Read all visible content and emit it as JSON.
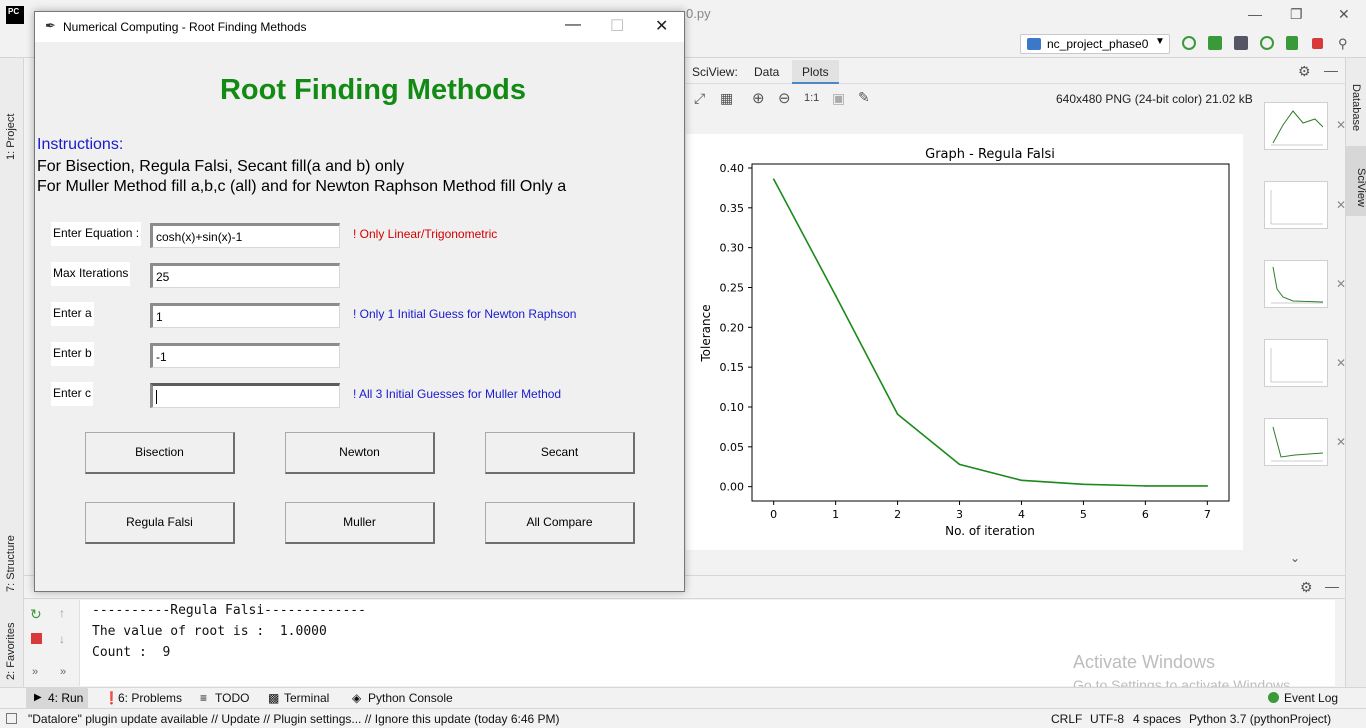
{
  "ide": {
    "logo": "PC",
    "run_config": "nc_project_phase0",
    "editor_tab_fragment": "0.py",
    "left_tools": {
      "project": "1: Project",
      "structure": "7: Structure",
      "favorites": "2: Favorites"
    },
    "right_tools": {
      "database": "Database",
      "sciview": "SciView"
    }
  },
  "sciview": {
    "label": "SciView:",
    "tabs": [
      "Data",
      "Plots"
    ],
    "active_tab": "Plots",
    "zoom_label": "1:1",
    "image_info": "640x480 PNG (24-bit color) 21.02 kB"
  },
  "chart_data": {
    "type": "line",
    "title": "Graph - Regula Falsi",
    "xlabel": "No. of iteration",
    "ylabel": "Tolerance",
    "x": [
      0,
      1,
      2,
      3,
      4,
      5,
      6,
      7
    ],
    "series": [
      {
        "values": [
          0.386,
          0.24,
          0.091,
          0.028,
          0.008,
          0.003,
          0.001,
          0.001
        ]
      }
    ],
    "xlim": [
      -0.35,
      7.35
    ],
    "ylim": [
      -0.018,
      0.405
    ],
    "xticks": [
      0,
      1,
      2,
      3,
      4,
      5,
      6,
      7
    ],
    "yticks": [
      "0.00",
      "0.05",
      "0.10",
      "0.15",
      "0.20",
      "0.25",
      "0.30",
      "0.35",
      "0.40"
    ],
    "grid": false,
    "color": "#1a8a1a"
  },
  "tk": {
    "title": "Numerical Computing - Root Finding Methods",
    "heading": "Root Finding Methods",
    "instructions_title": "Instructions:",
    "instruction_1": "For Bisection, Regula Falsi, Secant fill(a and b) only",
    "instruction_2": "For Muller Method fill a,b,c (all) and for Newton Raphson Method fill Only a",
    "fields": {
      "equation": {
        "label": "Enter Equation :",
        "value": "cosh(x)+sin(x)-1",
        "hint": "! Only Linear/Trigonometric"
      },
      "max_iter": {
        "label": "Max Iterations",
        "value": "25"
      },
      "a": {
        "label": "Enter a",
        "value": "1",
        "hint": "! Only 1 Initial Guess for Newton Raphson"
      },
      "b": {
        "label": "Enter b",
        "value": "-1"
      },
      "c": {
        "label": "Enter c",
        "value": "",
        "hint": "! All 3 Initial Guesses for Muller Method"
      }
    },
    "buttons": {
      "bisection": "Bisection",
      "newton": "Newton",
      "secant": "Secant",
      "regula": "Regula Falsi",
      "muller": "Muller",
      "compare": "All Compare"
    }
  },
  "console": {
    "line1": "----------Regula Falsi-------------",
    "line2": "The value of root is :  1.0000",
    "line3": "Count :  9"
  },
  "bottom_tabs": {
    "run": "4: Run",
    "problems": "6: Problems",
    "todo": "TODO",
    "terminal": "Terminal",
    "python_console": "Python Console",
    "event_log": "Event Log"
  },
  "status": {
    "message": "\"Datalore\" plugin update available // Update // Plugin settings... // Ignore this update (today 6:46 PM)",
    "line_sep": "CRLF",
    "encoding": "UTF-8",
    "indent": "4 spaces",
    "interpreter": "Python 3.7 (pythonProject)"
  },
  "watermark": {
    "line1": "Activate Windows",
    "line2": "Go to Settings to activate Windows."
  },
  "colors": {
    "heading": "#138a13",
    "instructions_title": "#1a1acc",
    "hint_red": "#d40000",
    "hint_blue": "#1a1acc"
  }
}
